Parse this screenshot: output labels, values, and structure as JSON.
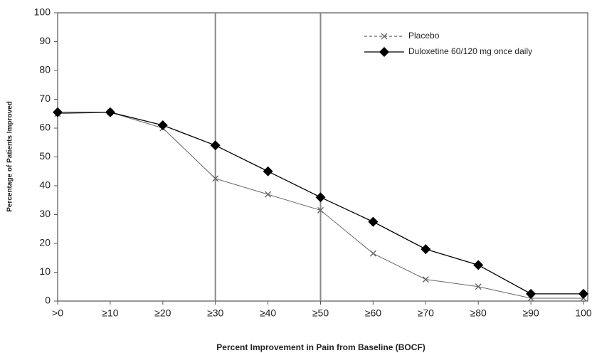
{
  "chart_data": {
    "type": "line",
    "x_label": "Percent Improvement in Pain from Baseline (BOCF)",
    "y_label": "Percentage of Patients Improved",
    "categories": [
      ">0",
      "≥10",
      "≥20",
      "≥30",
      "≥40",
      "≥50",
      "≥60",
      "≥70",
      "≥80",
      "≥90",
      "100"
    ],
    "series": [
      {
        "name": "Placebo",
        "color": "#666666",
        "marker": "x",
        "dashed_legend": true,
        "values": [
          65,
          65.5,
          60,
          42.5,
          37,
          31.5,
          16.5,
          7.5,
          5,
          1,
          1
        ]
      },
      {
        "name": "Duloxetine 60/120 mg once daily",
        "color": "#000000",
        "marker": "diamond",
        "dashed_legend": false,
        "values": [
          65.5,
          65.5,
          61,
          54,
          45,
          36,
          27.5,
          18,
          12.5,
          2.5,
          2.5
        ]
      }
    ],
    "ylim": [
      0,
      100
    ],
    "yticks": [
      0,
      10,
      20,
      30,
      40,
      50,
      60,
      70,
      80,
      90,
      100
    ],
    "legend": "upper right"
  }
}
